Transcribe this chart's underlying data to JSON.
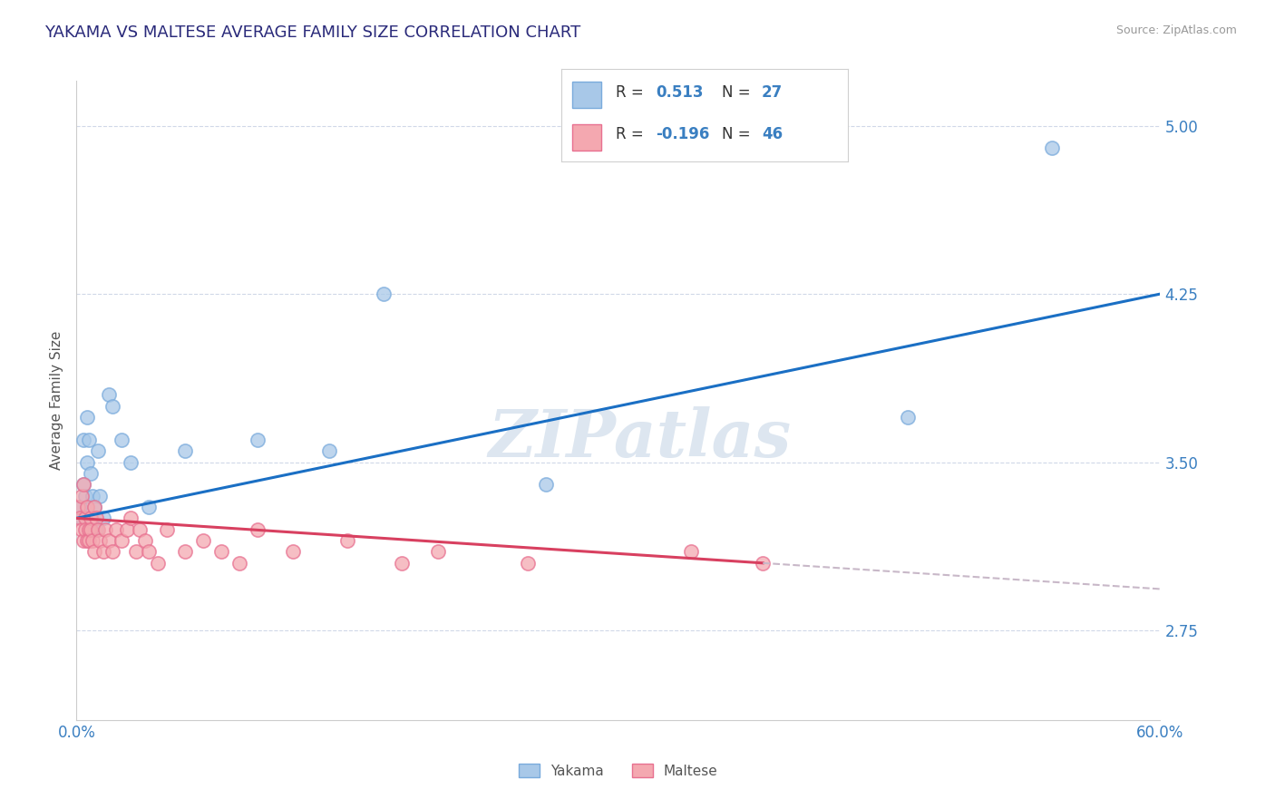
{
  "title": "YAKAMA VS MALTESE AVERAGE FAMILY SIZE CORRELATION CHART",
  "source_text": "Source: ZipAtlas.com",
  "ylabel": "Average Family Size",
  "xmin": 0.0,
  "xmax": 0.6,
  "yticks": [
    2.75,
    3.5,
    4.25,
    5.0
  ],
  "ymin": 2.35,
  "ymax": 5.2,
  "yakama_color": "#a8c8e8",
  "yakama_edge_color": "#7aabdc",
  "maltese_color": "#f4a8b0",
  "maltese_edge_color": "#e87090",
  "regression_yakama_color": "#1a6fc4",
  "regression_maltese_color": "#d84060",
  "regression_extend_color": "#c8b8c8",
  "title_color": "#2a2a7a",
  "axis_label_color": "#555555",
  "tick_color": "#3a7fc1",
  "grid_color": "#d0d8e8",
  "watermark_color": "#dde6f0",
  "legend_r_yakama": "0.513",
  "legend_n_yakama": "27",
  "legend_r_maltese": "-0.196",
  "legend_n_maltese": "46",
  "xtick_labels": [
    "0.0%",
    "60.0%"
  ],
  "xtick_vals": [
    0.0,
    0.6
  ],
  "yakama_x": [
    0.002,
    0.003,
    0.004,
    0.004,
    0.005,
    0.006,
    0.006,
    0.007,
    0.008,
    0.009,
    0.01,
    0.011,
    0.012,
    0.013,
    0.015,
    0.018,
    0.02,
    0.025,
    0.03,
    0.04,
    0.06,
    0.1,
    0.14,
    0.17,
    0.26,
    0.46,
    0.54
  ],
  "yakama_y": [
    3.3,
    3.25,
    3.4,
    3.6,
    3.35,
    3.5,
    3.7,
    3.6,
    3.45,
    3.35,
    3.3,
    3.2,
    3.55,
    3.35,
    3.25,
    3.8,
    3.75,
    3.6,
    3.5,
    3.3,
    3.55,
    3.6,
    3.55,
    4.25,
    3.4,
    3.7,
    4.9
  ],
  "maltese_x": [
    0.001,
    0.002,
    0.003,
    0.003,
    0.004,
    0.004,
    0.005,
    0.005,
    0.006,
    0.006,
    0.007,
    0.007,
    0.008,
    0.008,
    0.009,
    0.01,
    0.01,
    0.011,
    0.012,
    0.013,
    0.015,
    0.016,
    0.018,
    0.02,
    0.022,
    0.025,
    0.028,
    0.03,
    0.033,
    0.035,
    0.038,
    0.04,
    0.045,
    0.05,
    0.06,
    0.07,
    0.08,
    0.09,
    0.1,
    0.12,
    0.15,
    0.18,
    0.2,
    0.25,
    0.34,
    0.38
  ],
  "maltese_y": [
    3.3,
    3.25,
    3.2,
    3.35,
    3.15,
    3.4,
    3.25,
    3.2,
    3.15,
    3.3,
    3.2,
    3.15,
    3.25,
    3.2,
    3.15,
    3.3,
    3.1,
    3.25,
    3.2,
    3.15,
    3.1,
    3.2,
    3.15,
    3.1,
    3.2,
    3.15,
    3.2,
    3.25,
    3.1,
    3.2,
    3.15,
    3.1,
    3.05,
    3.2,
    3.1,
    3.15,
    3.1,
    3.05,
    3.2,
    3.1,
    3.15,
    3.05,
    3.1,
    3.05,
    3.1,
    3.05
  ]
}
